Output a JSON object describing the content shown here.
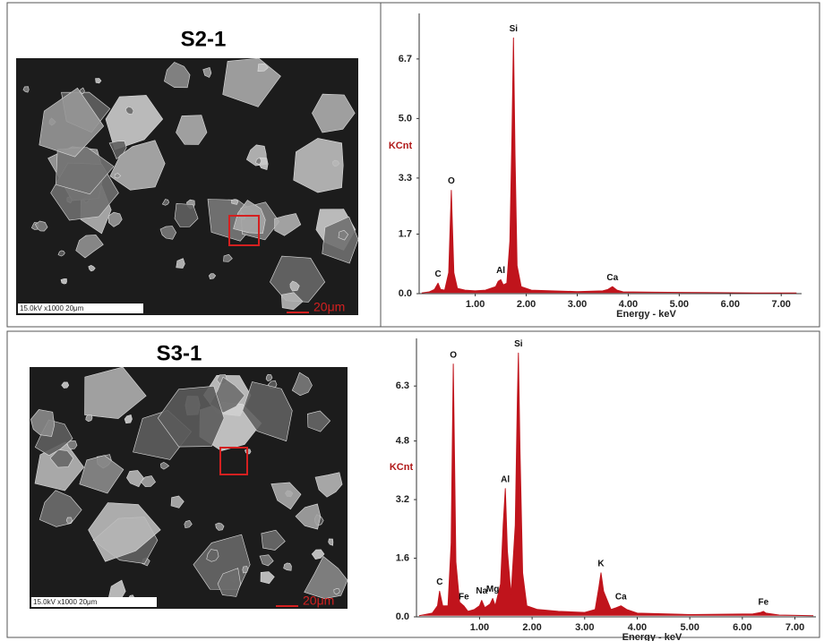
{
  "chart_data": [
    {
      "type": "line",
      "title": "S2-1",
      "sem_info": "15.0kV x1000 20μm",
      "sem_scale": "20μm",
      "ylabel": "KCnt",
      "xlabel": "Energy - keV",
      "xlim": [
        -0.1,
        7.4
      ],
      "ylim": [
        0,
        8
      ],
      "yticks": [
        {
          "value": 0,
          "label": "0.0"
        },
        1.7,
        3.3,
        {
          "value": 5,
          "label": "5.0"
        },
        6.7
      ],
      "xticks": [
        {
          "value": 1,
          "label": "1.00"
        },
        {
          "value": 2,
          "label": "2.00"
        },
        {
          "value": 3,
          "label": "3.00"
        },
        {
          "value": 4,
          "label": "4.00"
        },
        {
          "value": 5,
          "label": "5.00"
        },
        {
          "value": 6,
          "label": "6.00"
        },
        {
          "value": 7,
          "label": "7.00"
        }
      ],
      "series": [
        {
          "color": "#c0141c",
          "x": [
            -0.05,
            0.1,
            0.2,
            0.27,
            0.32,
            0.4,
            0.48,
            0.53,
            0.58,
            0.65,
            0.8,
            1.0,
            1.2,
            1.4,
            1.45,
            1.5,
            1.55,
            1.62,
            1.68,
            1.72,
            1.75,
            1.78,
            1.82,
            1.9,
            2.1,
            2.5,
            3.0,
            3.5,
            3.6,
            3.69,
            3.78,
            3.9,
            4.5,
            5.5,
            6.5,
            7.3
          ],
          "values": [
            0.02,
            0.05,
            0.12,
            0.3,
            0.12,
            0.1,
            0.6,
            2.95,
            0.6,
            0.15,
            0.1,
            0.08,
            0.1,
            0.2,
            0.35,
            0.4,
            0.25,
            0.3,
            1.5,
            4.5,
            7.3,
            4.0,
            0.8,
            0.2,
            0.1,
            0.08,
            0.06,
            0.08,
            0.12,
            0.2,
            0.1,
            0.05,
            0.04,
            0.03,
            0.02,
            0.02
          ]
        }
      ],
      "peaks": [
        {
          "label": "C",
          "x": 0.27,
          "value": 0.3
        },
        {
          "label": "O",
          "x": 0.53,
          "value": 2.95
        },
        {
          "label": "Al",
          "x": 1.5,
          "value": 0.4
        },
        {
          "label": "Si",
          "x": 1.75,
          "value": 7.3
        },
        {
          "label": "Ca",
          "x": 3.69,
          "value": 0.2
        }
      ]
    },
    {
      "type": "line",
      "title": "S3-1",
      "sem_info": "15.0kV x1000 20μm",
      "sem_scale": "20μm",
      "ylabel": "KCnt",
      "xlabel": "Energy - keV",
      "xlim": [
        -0.2,
        7.4
      ],
      "ylim": [
        0,
        7.6
      ],
      "yticks": [
        {
          "value": 0,
          "label": "0.0"
        },
        1.6,
        3.2,
        4.8,
        6.3
      ],
      "xticks": [
        {
          "value": 1,
          "label": "1.00"
        },
        {
          "value": 2,
          "label": "2.00"
        },
        {
          "value": 3,
          "label": "3.00"
        },
        {
          "value": 4,
          "label": "4.00"
        },
        {
          "value": 5,
          "label": "5.00"
        },
        {
          "value": 6,
          "label": "6.00"
        },
        {
          "value": 7,
          "label": "7.00"
        }
      ],
      "series": [
        {
          "color": "#c0141c",
          "x": [
            -0.15,
            0.1,
            0.2,
            0.24,
            0.3,
            0.4,
            0.46,
            0.5,
            0.55,
            0.62,
            0.7,
            0.78,
            0.9,
            1.0,
            1.04,
            1.1,
            1.2,
            1.25,
            1.3,
            1.4,
            1.45,
            1.49,
            1.53,
            1.6,
            1.68,
            1.72,
            1.74,
            1.77,
            1.82,
            1.9,
            2.1,
            2.5,
            3.0,
            3.2,
            3.27,
            3.31,
            3.36,
            3.5,
            3.6,
            3.69,
            3.8,
            4.0,
            5.0,
            6.2,
            6.35,
            6.4,
            6.45,
            6.7,
            7.35
          ],
          "values": [
            0.03,
            0.1,
            0.3,
            0.7,
            0.3,
            0.3,
            2.0,
            6.9,
            1.5,
            0.4,
            0.3,
            0.15,
            0.2,
            0.3,
            0.45,
            0.25,
            0.35,
            0.5,
            0.3,
            0.9,
            2.5,
            3.5,
            1.8,
            0.6,
            2.5,
            6.0,
            7.2,
            4.5,
            1.2,
            0.3,
            0.2,
            0.15,
            0.12,
            0.2,
            0.8,
            1.2,
            0.7,
            0.2,
            0.25,
            0.3,
            0.2,
            0.1,
            0.06,
            0.08,
            0.12,
            0.15,
            0.1,
            0.05,
            0.03
          ]
        }
      ],
      "peaks": [
        {
          "label": "C",
          "x": 0.24,
          "value": 0.7
        },
        {
          "label": "O",
          "x": 0.5,
          "value": 6.9
        },
        {
          "label": "Fe",
          "x": 0.7,
          "value": 0.3
        },
        {
          "label": "Na",
          "x": 1.04,
          "value": 0.45
        },
        {
          "label": "Mg",
          "x": 1.25,
          "value": 0.5
        },
        {
          "label": "Al",
          "x": 1.49,
          "value": 3.5
        },
        {
          "label": "Si",
          "x": 1.74,
          "value": 7.2
        },
        {
          "label": "K",
          "x": 3.31,
          "value": 1.2
        },
        {
          "label": "Ca",
          "x": 3.69,
          "value": 0.3
        },
        {
          "label": "Fe",
          "x": 6.4,
          "value": 0.15
        }
      ]
    }
  ]
}
